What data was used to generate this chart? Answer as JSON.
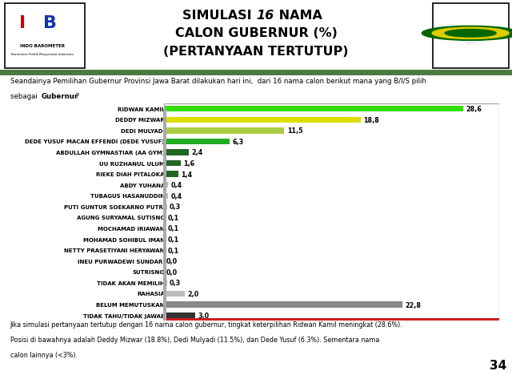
{
  "categories": [
    "RIDWAN KAMIL",
    "DEDDY MIZWAR",
    "DEDI MULYADI",
    "DEDE YUSUF MACAN EFFENDI (DEDE YUSUF)",
    "ABDULLAH GYMNASTIAR (AA GYM)",
    "UU RUZHANUL ULUM",
    "RIEKE DIAH PITALOKA",
    "ABDY YUHANA",
    "TUBAGUS HASANUDDIN",
    "PUTI GUNTUR SOEKARNO PUTRI",
    "AGUNG SURYAMAL SUTISNO",
    "MOCHAMAD IRIAWAN",
    "MOHAMAD SOHIBUL IMAN",
    "NETTY PRASETIYANI HERYAWAN",
    "INEU PURWADEWI SUNDARI",
    "SUTRISNO",
    "TIDAK AKAN MEMILIH",
    "RAHASIA",
    "BELUM MEMUTUSKAN",
    "TIDAK TAHU/TIDAK JAWAB"
  ],
  "values": [
    28.6,
    18.8,
    11.5,
    6.3,
    2.4,
    1.6,
    1.4,
    0.4,
    0.4,
    0.3,
    0.1,
    0.1,
    0.1,
    0.1,
    0.0,
    0.0,
    0.3,
    2.0,
    22.8,
    3.0
  ],
  "bar_colors": [
    "#33dd00",
    "#dddd00",
    "#aacc44",
    "#22aa22",
    "#226622",
    "#226622",
    "#226622",
    "#bbbbbb",
    "#bbbbbb",
    "#bbbbbb",
    "#bbbbbb",
    "#bbbbbb",
    "#bbbbbb",
    "#bbbbbb",
    "#bbbbbb",
    "#bbbbbb",
    "#bbbbbb",
    "#bbbbbb",
    "#888888",
    "#333333"
  ],
  "label_values": [
    "28,6",
    "18,8",
    "11,5",
    "6,3",
    "2,4",
    "1,6",
    "1,4",
    "0,4",
    "0,4",
    "0,3",
    "0,1",
    "0,1",
    "0,1",
    "0,1",
    "0,0",
    "0,0",
    "0,3",
    "2,0",
    "22,8",
    "3,0"
  ],
  "footer_line1": "Jika simulasi pertanyaan tertutup dengan 16 nama calon gubernur, tingkat keterpilihan Ridwan Kamil meningkat (28.6%).",
  "footer_line2": "Posisi di bawahnya adalah Deddy Mizwar (18.8%), Dedi Mulyadi (11.5%), dan Dede Yusuf (6.3%). Sementara nama",
  "footer_line3": "calon lainnya (<3%).",
  "page_number": "34",
  "green_bar_color": "#4a7c3f",
  "chart_border_color": "#cc2222",
  "background_color": "#ffffff",
  "header_bg": "#f5f5f0",
  "xlim": [
    0,
    32
  ],
  "subtitle_line1": "Seandainya Pemilihan Gubernur Provinsi Jawa Barat dilakukan hari ini,  dari 16 nama calon berikut mana yang B/I/S pilih",
  "subtitle_line2a": "sebagai ",
  "subtitle_line2b": "Gubernur",
  "subtitle_line2c": " ?"
}
